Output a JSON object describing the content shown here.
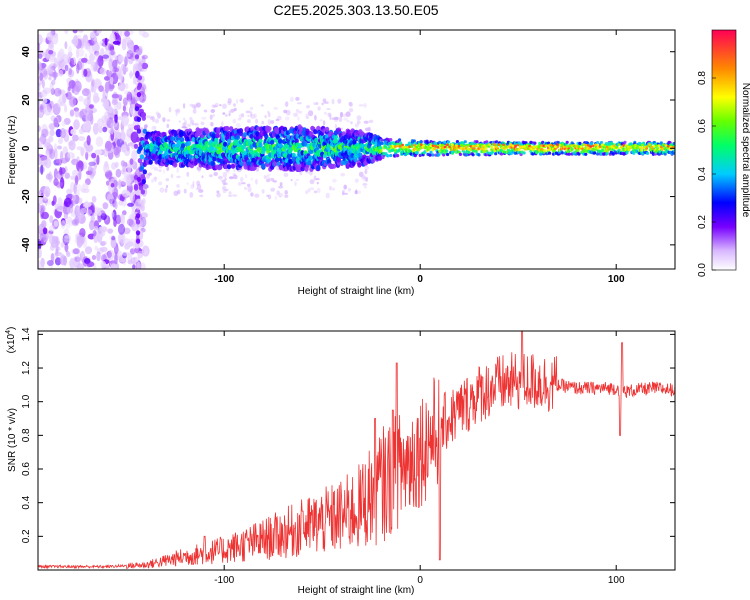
{
  "chart_data": [
    {
      "type": "heatmap",
      "title": "C2E5.2025.303.13.50.E05",
      "xlabel": "Height of straight line (km)",
      "ylabel": "Frequency (Hz)",
      "xlim": [
        -195,
        130
      ],
      "ylim": [
        -50,
        49
      ],
      "xticks": [
        -100,
        0,
        100
      ],
      "yticks": [
        -40,
        -20,
        0,
        20,
        40
      ],
      "colorbar": {
        "label": "Normalized spectral amplitude",
        "range": [
          0.0,
          1.0
        ],
        "ticks": [
          0.0,
          0.2,
          0.4,
          0.6,
          0.8
        ],
        "tick_labels": [
          "0.0",
          "0.2",
          "0.4",
          "0.6",
          "0.8"
        ]
      },
      "band": [
        {
          "x": -195,
          "half_width_hz": 50,
          "amplitude": 0.15
        },
        {
          "x": -145,
          "half_width_hz": 48,
          "amplitude": 0.1
        },
        {
          "x": -140,
          "half_width_hz": 6,
          "amplitude": 0.45
        },
        {
          "x": -110,
          "half_width_hz": 8,
          "amplitude": 0.5
        },
        {
          "x": -60,
          "half_width_hz": 9,
          "amplitude": 0.5
        },
        {
          "x": -30,
          "half_width_hz": 7,
          "amplitude": 0.5
        },
        {
          "x": -20,
          "half_width_hz": 4,
          "amplitude": 0.6
        },
        {
          "x": 0,
          "half_width_hz": 3,
          "amplitude": 0.75
        },
        {
          "x": 60,
          "half_width_hz": 2.5,
          "amplitude": 0.85
        },
        {
          "x": 130,
          "half_width_hz": 2.5,
          "amplitude": 0.7
        }
      ]
    },
    {
      "type": "line",
      "xlabel": "Height of straight line (km)",
      "ylabel": "SNR (10 * v/v)",
      "y_multiplier": "(x10",
      "y_exponent": "4",
      "y_multiplier_close": ")",
      "xlim": [
        -195,
        130
      ],
      "ylim": [
        0.0,
        1.42
      ],
      "xticks": [
        -100,
        0,
        100
      ],
      "yticks": [
        0.2,
        0.4,
        0.6,
        0.8,
        1.0,
        1.2,
        1.4
      ],
      "ytick_labels": [
        "0.2",
        "0.4",
        "0.6",
        "0.8",
        "1.0",
        "1.2",
        "1.4"
      ],
      "series": [
        {
          "name": "SNR",
          "color": "#ee3333",
          "x": [
            -195,
            -160,
            -140,
            -120,
            -100,
            -80,
            -60,
            -40,
            -30,
            -25,
            -20,
            -15,
            -10,
            -5,
            0,
            5,
            10,
            20,
            30,
            40,
            50,
            60,
            70,
            80,
            90,
            100,
            105,
            110,
            120,
            130
          ],
          "y": [
            0.02,
            0.02,
            0.03,
            0.08,
            0.12,
            0.18,
            0.25,
            0.32,
            0.38,
            0.45,
            0.5,
            0.55,
            0.6,
            0.65,
            0.72,
            0.78,
            0.85,
            0.95,
            1.05,
            1.1,
            1.12,
            1.12,
            1.1,
            1.08,
            1.08,
            1.08,
            1.06,
            1.07,
            1.08,
            1.07
          ]
        }
      ],
      "spikes": [
        {
          "x": -110,
          "y": 0.2
        },
        {
          "x": -60,
          "y": 0.35
        },
        {
          "x": -23,
          "y": 0.9
        },
        {
          "x": -14,
          "y": 0.95
        },
        {
          "x": -12,
          "y": 1.23
        },
        {
          "x": 10,
          "y": 0.06
        },
        {
          "x": 52,
          "y": 1.42
        },
        {
          "x": 103,
          "y": 1.35
        },
        {
          "x": 102,
          "y": 0.8
        }
      ]
    }
  ]
}
